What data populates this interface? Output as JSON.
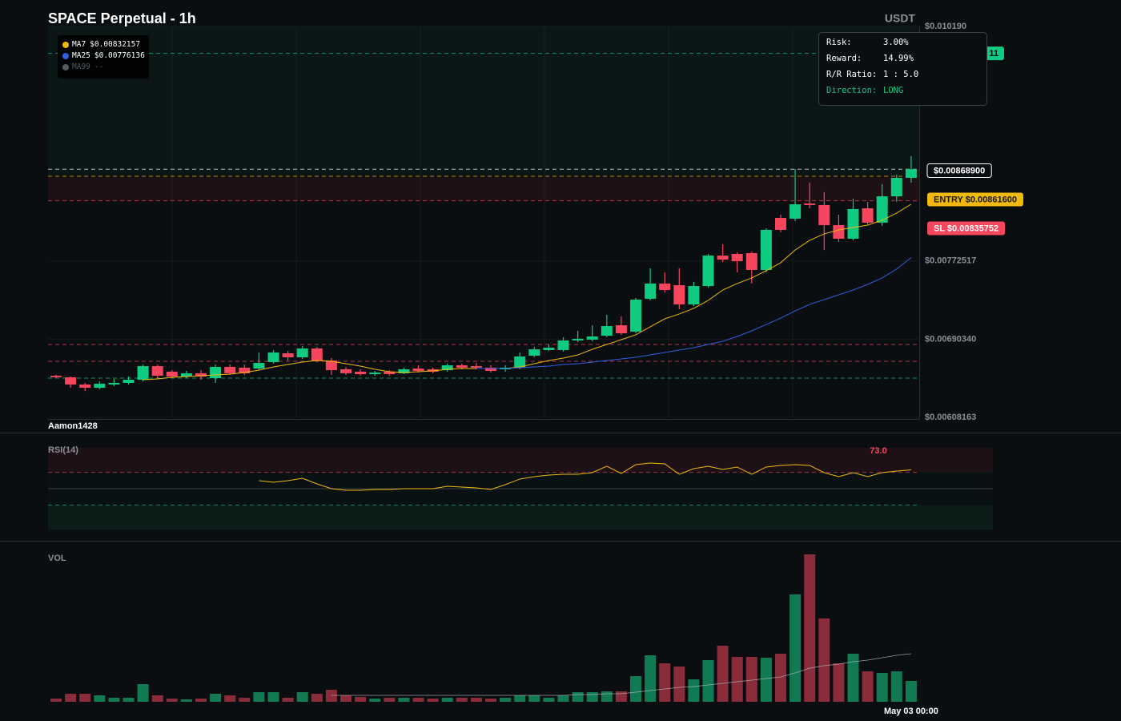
{
  "header": {
    "title": "SPACE Perpetual - 1h",
    "quote": "USDT",
    "watermark": "Aamon1428"
  },
  "tooltip": {
    "rows": [
      [
        "Risk:",
        "3.00%"
      ],
      [
        "Reward:",
        "14.99%"
      ],
      [
        "R/R Ratio:",
        "1 : 5.0"
      ],
      [
        "Direction:",
        "LONG"
      ]
    ]
  },
  "chart_data": [
    {
      "type": "candlestick",
      "up_color": "#0ecb81",
      "down_color": "#f6465d",
      "grid": true,
      "categories": [
        null,
        null,
        null,
        null,
        null,
        null,
        null,
        null,
        null,
        null,
        null,
        null,
        null,
        null,
        null,
        null,
        null,
        null,
        null,
        null,
        null,
        null,
        null,
        null,
        null,
        null,
        null,
        null,
        null,
        null,
        null,
        null,
        null,
        null,
        null,
        null,
        null,
        null,
        null,
        null,
        null,
        null,
        null,
        null,
        null,
        null,
        null,
        null,
        null,
        null,
        null,
        null,
        null,
        null,
        null,
        null,
        null,
        null,
        null,
        "May 03 00:00"
      ],
      "open": [
        0.006519,
        0.006503,
        0.006427,
        0.006393,
        0.006427,
        0.006444,
        0.006477,
        0.00662,
        0.006562,
        0.006511,
        0.006545,
        0.006494,
        0.006612,
        0.006604,
        0.006595,
        0.006663,
        0.006755,
        0.006713,
        0.006806,
        0.006679,
        0.006587,
        0.006562,
        0.006536,
        0.006562,
        0.006545,
        0.006595,
        0.006587,
        0.006578,
        0.006629,
        0.00662,
        0.006604,
        0.006587,
        0.006604,
        0.00673,
        0.006789,
        0.006789,
        0.00689,
        0.006898,
        0.00694,
        0.00705,
        0.006983,
        0.007328,
        0.007488,
        0.007471,
        0.007269,
        0.007462,
        0.007782,
        0.007799,
        0.007808,
        0.007631,
        0.008178,
        0.00817,
        0.00833,
        0.008313,
        0.008102,
        0.007959,
        0.008279,
        0.008128,
        0.008405,
        0.008599
      ],
      "high": [
        0.006528,
        0.006511,
        0.006444,
        0.00646,
        0.006486,
        0.006511,
        0.006637,
        0.006637,
        0.006578,
        0.00657,
        0.006578,
        0.006637,
        0.006637,
        0.006637,
        0.006764,
        0.006789,
        0.00678,
        0.006831,
        0.006823,
        0.006705,
        0.006612,
        0.006587,
        0.00657,
        0.006578,
        0.006604,
        0.006629,
        0.006604,
        0.006646,
        0.006646,
        0.006654,
        0.006629,
        0.006629,
        0.006764,
        0.006823,
        0.006848,
        0.006924,
        0.006991,
        0.00705,
        0.007159,
        0.007143,
        0.007336,
        0.007648,
        0.007606,
        0.007648,
        0.007505,
        0.007799,
        0.0079,
        0.007816,
        0.007825,
        0.008069,
        0.008212,
        0.008692,
        0.008549,
        0.008448,
        0.008212,
        0.00838,
        0.008347,
        0.008532,
        0.008633,
        0.008827
      ],
      "low": [
        0.006494,
        0.006393,
        0.006359,
        0.006376,
        0.00641,
        0.006427,
        0.00646,
        0.006494,
        0.006494,
        0.006494,
        0.006477,
        0.006444,
        0.006528,
        0.006528,
        0.006578,
        0.006646,
        0.006679,
        0.006696,
        0.006663,
        0.006528,
        0.006528,
        0.006519,
        0.006519,
        0.006519,
        0.006536,
        0.006553,
        0.006545,
        0.006562,
        0.006587,
        0.006587,
        0.006553,
        0.006562,
        0.006587,
        0.006713,
        0.00678,
        0.006772,
        0.006873,
        0.006881,
        0.006924,
        0.006949,
        0.006966,
        0.007311,
        0.007395,
        0.007218,
        0.007252,
        0.007446,
        0.007715,
        0.007606,
        0.007488,
        0.007606,
        0.008027,
        0.008144,
        0.008279,
        0.007841,
        0.007926,
        0.007942,
        0.008111,
        0.008094,
        0.008347,
        0.008549
      ],
      "close": [
        0.006503,
        0.006427,
        0.006393,
        0.006435,
        0.006444,
        0.006477,
        0.00662,
        0.006519,
        0.006511,
        0.006545,
        0.006511,
        0.006612,
        0.006545,
        0.006545,
        0.006654,
        0.006764,
        0.006713,
        0.006806,
        0.006679,
        0.006578,
        0.006545,
        0.006536,
        0.006553,
        0.006536,
        0.006587,
        0.00657,
        0.006562,
        0.006629,
        0.006604,
        0.006604,
        0.00657,
        0.006604,
        0.006722,
        0.006797,
        0.006814,
        0.00689,
        0.006907,
        0.006932,
        0.007041,
        0.006966,
        0.007319,
        0.007488,
        0.00742,
        0.007269,
        0.007462,
        0.007782,
        0.00774,
        0.007723,
        0.007631,
        0.008052,
        0.008052,
        0.008321,
        0.008313,
        0.008102,
        0.007959,
        0.008271,
        0.008128,
        0.008405,
        0.008599,
        0.008689
      ],
      "ylim": [
        0.00608163,
        0.01019
      ],
      "yticks": [
        {
          "value": 0.00608163,
          "label": "$0.00608163"
        },
        {
          "value": 0.0069034,
          "label": "$0.00690340"
        },
        {
          "value": 0.00772517,
          "label": "$0.00772517"
        },
        {
          "value": 0.01019,
          "label": "$0.010190"
        }
      ],
      "series": [
        {
          "name": "MA7",
          "last_label": "$0.00832157",
          "color": "#f0b90b",
          "values": [
            null,
            null,
            null,
            null,
            null,
            null,
            0.006477,
            0.006486,
            0.006503,
            0.006511,
            0.006519,
            0.006528,
            0.006536,
            0.006553,
            0.006578,
            0.006612,
            0.006637,
            0.006663,
            0.006679,
            0.006671,
            0.006646,
            0.00662,
            0.006587,
            0.006562,
            0.006553,
            0.006562,
            0.00657,
            0.006587,
            0.006595,
            0.006595,
            0.006595,
            0.006595,
            0.006612,
            0.006646,
            0.006679,
            0.006705,
            0.006738,
            0.006797,
            0.006848,
            0.006898,
            0.006949,
            0.007033,
            0.007117,
            0.007168,
            0.007227,
            0.007311,
            0.00742,
            0.007488,
            0.007547,
            0.007623,
            0.007707,
            0.007841,
            0.007942,
            0.00801,
            0.008052,
            0.008077,
            0.008102,
            0.008153,
            0.008229,
            0.008322
          ]
        },
        {
          "name": "MA25",
          "last_label": "$0.00776136",
          "color": "#2f5fe0",
          "values": [
            null,
            null,
            null,
            null,
            null,
            null,
            null,
            null,
            null,
            null,
            null,
            null,
            null,
            null,
            null,
            null,
            null,
            null,
            null,
            null,
            null,
            null,
            null,
            null,
            null,
            null,
            null,
            null,
            null,
            0.006595,
            0.006595,
            0.006595,
            0.006604,
            0.006612,
            0.00662,
            0.006637,
            0.006646,
            0.006663,
            0.006679,
            0.006696,
            0.006713,
            0.006738,
            0.006764,
            0.006789,
            0.006814,
            0.006848,
            0.006881,
            0.006932,
            0.006991,
            0.007058,
            0.007125,
            0.007201,
            0.007269,
            0.007319,
            0.00737,
            0.00742,
            0.007479,
            0.007547,
            0.00764,
            0.007761
          ]
        },
        {
          "name": "MA99",
          "last_label": "--",
          "color": "#555a61"
        }
      ],
      "price_lines": [
        {
          "value": 0.009907,
          "label": "11",
          "color": "#0ecb81"
        },
        {
          "value": 0.008689,
          "label": "$0.00868900",
          "color": "#ffffff"
        },
        {
          "value": 0.008616,
          "label": "ENTRY $0.00861600",
          "color": "#f0b90b"
        },
        {
          "value": 0.00835752,
          "label": "SL $0.00835752",
          "color": "#f6465d"
        },
        {
          "value": 0.006848,
          "color": "#f6465d"
        },
        {
          "value": 0.006671,
          "color": "#f6465d"
        },
        {
          "value": 0.006494,
          "color": "#0ecb81"
        }
      ]
    },
    {
      "type": "line",
      "label": "RSI(14)",
      "last_label": "73.0",
      "color": "#f0b90b",
      "ylim": [
        0,
        100
      ],
      "levels": [
        70,
        50,
        30
      ],
      "values": [
        null,
        null,
        null,
        null,
        null,
        null,
        null,
        null,
        null,
        null,
        null,
        null,
        null,
        null,
        59.8,
        57.8,
        59.8,
        62.7,
        55.9,
        50.0,
        48.0,
        48.0,
        49.0,
        49.0,
        50.0,
        50.0,
        50.0,
        52.9,
        52.0,
        51.0,
        49.0,
        54.9,
        61.8,
        64.7,
        66.7,
        67.6,
        67.6,
        69.6,
        77.5,
        68.6,
        79.4,
        81.4,
        80.4,
        67.6,
        74.5,
        77.5,
        73.5,
        76.5,
        67.6,
        76.5,
        78.4,
        79.4,
        78.4,
        69.6,
        64.7,
        69.6,
        64.7,
        69.6,
        71.6,
        73
      ]
    },
    {
      "type": "bar",
      "label": "VOL",
      "up_color": "#127a52",
      "down_color": "#8a2c3a",
      "values": [
        4,
        10,
        10,
        8,
        5,
        5,
        22,
        8,
        4,
        3,
        4,
        10,
        8,
        5,
        12,
        12,
        5,
        12,
        10,
        15,
        8,
        6,
        4,
        5,
        5,
        5,
        4,
        5,
        5,
        5,
        4,
        5,
        8,
        8,
        5,
        8,
        12,
        12,
        13,
        13,
        32,
        58,
        48,
        44,
        28,
        52,
        70,
        56,
        56,
        55,
        60,
        134,
        184,
        104,
        48,
        60,
        38,
        36,
        38,
        26
      ],
      "ma": {
        "color": "#b8bcc2",
        "values": [
          null,
          null,
          null,
          null,
          null,
          null,
          null,
          null,
          null,
          null,
          null,
          null,
          null,
          null,
          null,
          null,
          null,
          null,
          null,
          8,
          8,
          8,
          8,
          8,
          8,
          8,
          8,
          8,
          8,
          8,
          8,
          8,
          8,
          8,
          8,
          8,
          9,
          9,
          10,
          10,
          12,
          14,
          16,
          18,
          19,
          21,
          23,
          25,
          27,
          29,
          31,
          36,
          42,
          45,
          47,
          50,
          52,
          55,
          58,
          60
        ]
      }
    }
  ]
}
